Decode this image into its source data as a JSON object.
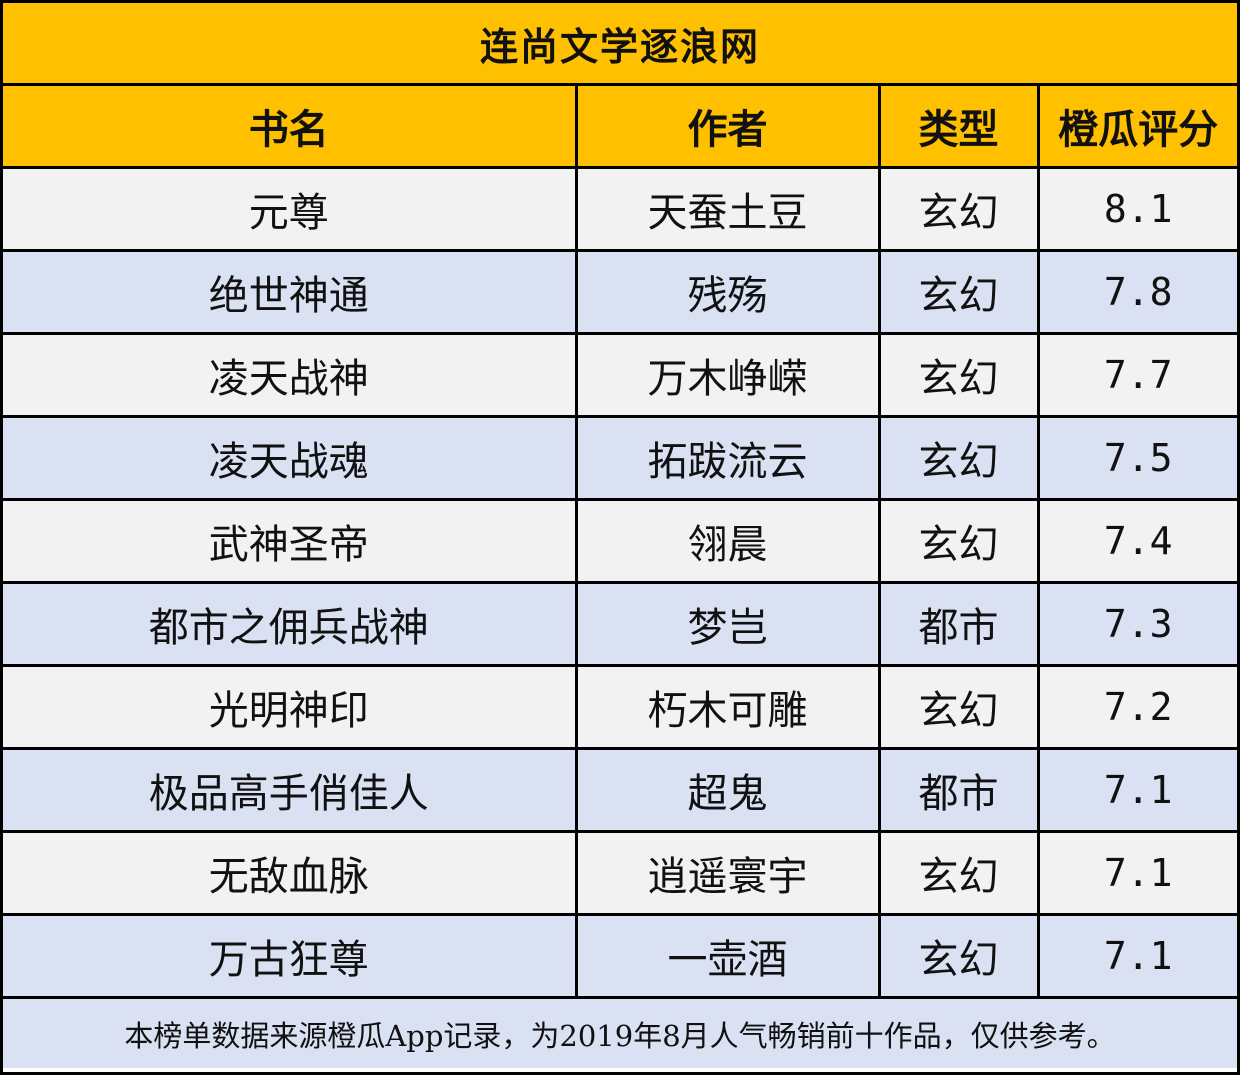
{
  "title": "连尚文学逐浪网",
  "headers": {
    "name": "书名",
    "author": "作者",
    "genre": "类型",
    "score": "橙瓜评分"
  },
  "rows": [
    {
      "name": "元尊",
      "author": "天蚕土豆",
      "genre": "玄幻",
      "score": "8.1"
    },
    {
      "name": "绝世神通",
      "author": "残殇",
      "genre": "玄幻",
      "score": "7.8"
    },
    {
      "name": "凌天战神",
      "author": "万木峥嵘",
      "genre": "玄幻",
      "score": "7.7"
    },
    {
      "name": "凌天战魂",
      "author": "拓跋流云",
      "genre": "玄幻",
      "score": "7.5"
    },
    {
      "name": "武神圣帝",
      "author": "翎晨",
      "genre": "玄幻",
      "score": "7.4"
    },
    {
      "name": "都市之佣兵战神",
      "author": "梦岂",
      "genre": "都市",
      "score": "7.3"
    },
    {
      "name": "光明神印",
      "author": "朽木可雕",
      "genre": "玄幻",
      "score": "7.2"
    },
    {
      "name": "极品高手俏佳人",
      "author": "超鬼",
      "genre": "都市",
      "score": "7.1"
    },
    {
      "name": "无敌血脉",
      "author": "逍遥寰宇",
      "genre": "玄幻",
      "score": "7.1"
    },
    {
      "name": "万古狂尊",
      "author": "一壶酒",
      "genre": "玄幻",
      "score": "7.1"
    }
  ],
  "footnote": "本榜单数据来源橙瓜App记录，为2019年8月人气畅销前十作品，仅供参考。",
  "colors": {
    "header_bg": "#FFC000",
    "row_light": "#F2F2F2",
    "row_blue": "#D9E1F2",
    "border": "#000000"
  }
}
